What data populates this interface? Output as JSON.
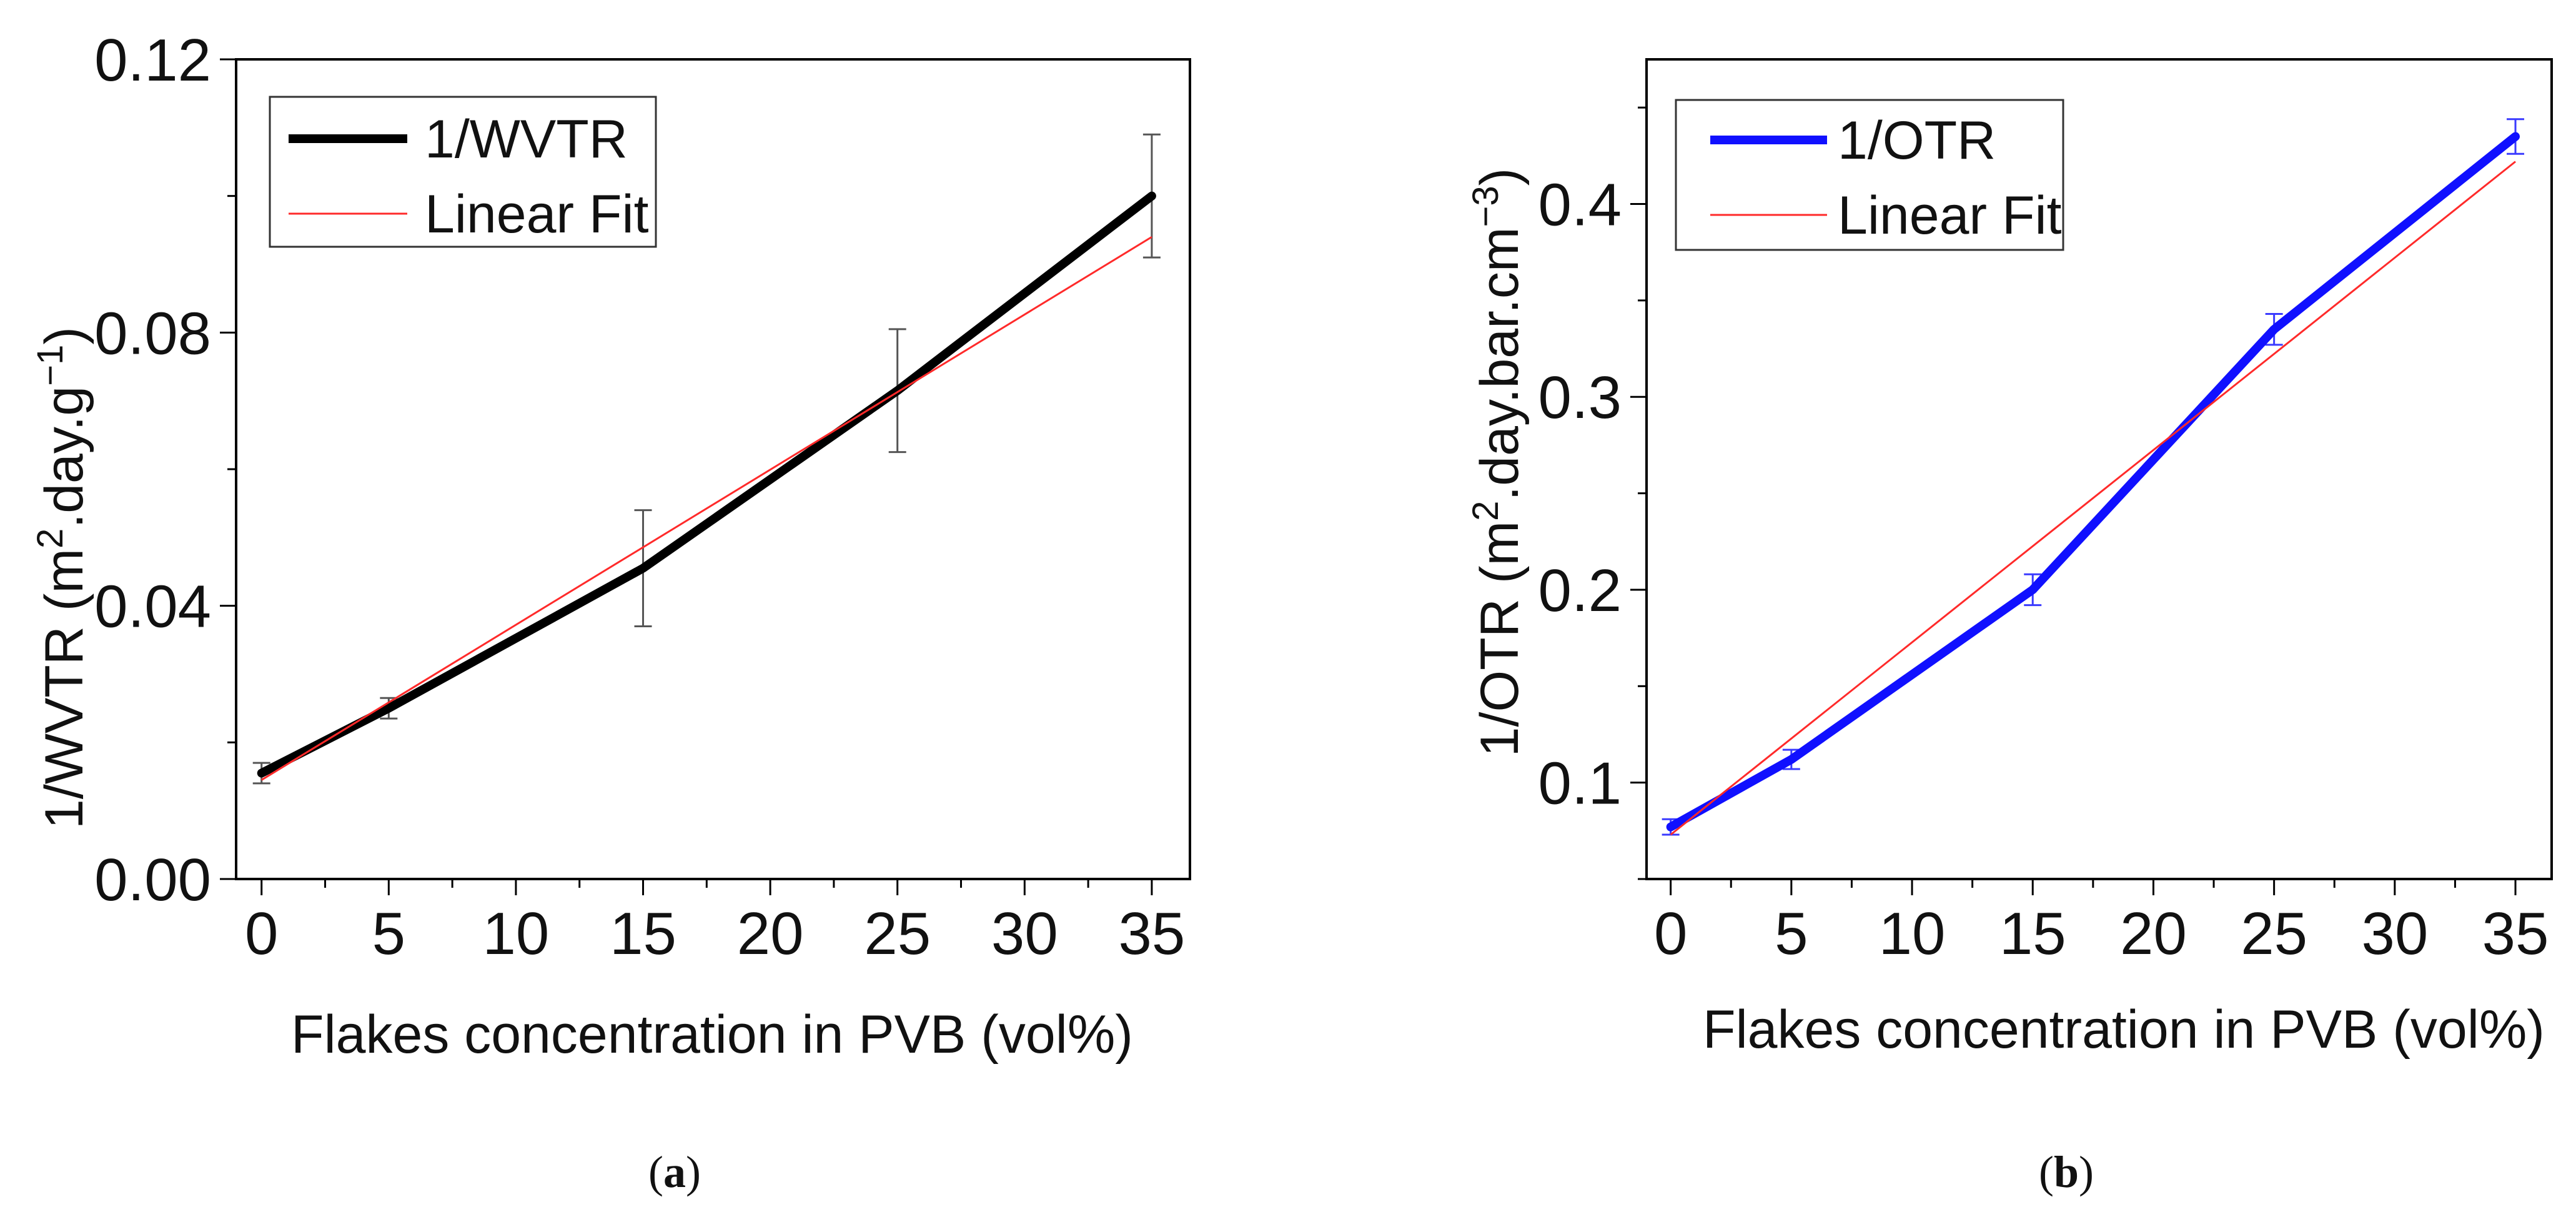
{
  "chart_data": [
    {
      "type": "line",
      "panel": "a",
      "caption": {
        "open": "(",
        "letter": "a",
        "close": ")"
      },
      "xlabel": "Flakes concentration in PVB (vol%)",
      "ylabel": {
        "main": "1/WVTR (m",
        "sup1": "2",
        "mid": ".day.g",
        "sup2": "−1",
        "end": ")"
      },
      "xlim": [
        -1,
        36.5
      ],
      "ylim": [
        0,
        0.12
      ],
      "xticks": [
        0,
        5,
        10,
        15,
        20,
        25,
        30,
        35
      ],
      "xtick_labels": [
        "0",
        "5",
        "10",
        "15",
        "20",
        "25",
        "30",
        "35"
      ],
      "yticks": [
        0,
        0.04,
        0.08,
        0.12
      ],
      "ytick_labels": [
        "0.00",
        "0.04",
        "0.08",
        "0.12"
      ],
      "legend_position": "top-left",
      "series": [
        {
          "name": "1/WVTR",
          "color": "#000000",
          "x": [
            0,
            5,
            15,
            25,
            35
          ],
          "y": [
            0.0155,
            0.025,
            0.0455,
            0.0715,
            0.1
          ],
          "yerr": [
            0.0015,
            0.0015,
            0.0085,
            0.009,
            0.009
          ],
          "errorbar_color": "#555555"
        },
        {
          "name": "Linear Fit",
          "color": "#ff2a2a",
          "x": [
            0,
            35
          ],
          "y": [
            0.0145,
            0.094
          ]
        }
      ]
    },
    {
      "type": "line",
      "panel": "b",
      "caption": {
        "open": "(",
        "letter": "b",
        "close": ")"
      },
      "xlabel": "Flakes concentration in PVB (vol%)",
      "ylabel": {
        "main": "1/OTR (m",
        "sup1": "2",
        "mid": ".day.bar.cm",
        "sup2": "−3",
        "end": ")"
      },
      "xlim": [
        -1,
        36.5
      ],
      "ylim": [
        0.05,
        0.475
      ],
      "xticks": [
        0,
        5,
        10,
        15,
        20,
        25,
        30,
        35
      ],
      "xtick_labels": [
        "0",
        "5",
        "10",
        "15",
        "20",
        "25",
        "30",
        "35"
      ],
      "yticks": [
        0.1,
        0.2,
        0.3,
        0.4
      ],
      "ytick_labels": [
        "0.1",
        "0.2",
        "0.3",
        "0.4"
      ],
      "legend_position": "top-left",
      "series": [
        {
          "name": "1/OTR",
          "color": "#1010ff",
          "x": [
            0,
            5,
            15,
            25,
            35
          ],
          "y": [
            0.077,
            0.112,
            0.2,
            0.335,
            0.435
          ],
          "yerr": [
            0.004,
            0.005,
            0.008,
            0.008,
            0.009
          ],
          "errorbar_color": "#3a3aff"
        },
        {
          "name": "Linear Fit",
          "color": "#ff2a2a",
          "x": [
            0,
            35
          ],
          "y": [
            0.073,
            0.422
          ]
        }
      ]
    }
  ]
}
